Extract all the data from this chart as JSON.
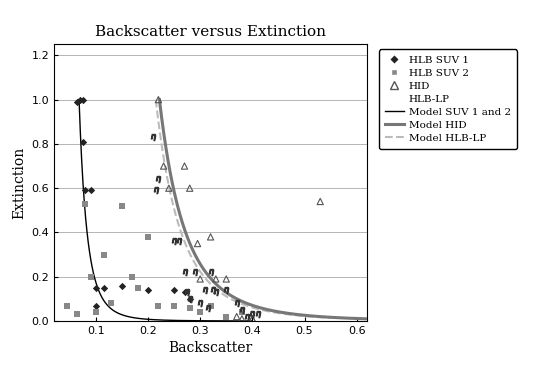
{
  "title": "Backscatter versus Extinction",
  "xlabel": "Backscatter",
  "ylabel": "Extinction",
  "xlim": [
    0.02,
    0.62
  ],
  "ylim": [
    0.0,
    1.25
  ],
  "xticks": [
    0.1,
    0.2,
    0.3,
    0.4,
    0.5,
    0.6
  ],
  "yticks": [
    0.0,
    0.2,
    0.4,
    0.6,
    0.8,
    1.0,
    1.2
  ],
  "suv1_x": [
    0.065,
    0.07,
    0.075,
    0.075,
    0.08,
    0.09,
    0.1,
    0.1,
    0.115,
    0.15,
    0.2,
    0.25,
    0.27,
    0.28
  ],
  "suv1_y": [
    0.99,
    1.0,
    1.0,
    0.81,
    0.59,
    0.59,
    0.15,
    0.07,
    0.15,
    0.16,
    0.14,
    0.14,
    0.13,
    0.1
  ],
  "suv2_x": [
    0.045,
    0.065,
    0.08,
    0.09,
    0.1,
    0.115,
    0.13,
    0.15,
    0.17,
    0.18,
    0.2,
    0.22,
    0.25,
    0.28,
    0.3,
    0.32,
    0.35,
    0.38
  ],
  "suv2_y": [
    0.07,
    0.03,
    0.53,
    0.2,
    0.04,
    0.3,
    0.08,
    0.52,
    0.2,
    0.15,
    0.38,
    0.07,
    0.07,
    0.06,
    0.04,
    0.07,
    0.02,
    0.04
  ],
  "hid_x": [
    0.22,
    0.23,
    0.24,
    0.27,
    0.28,
    0.295,
    0.3,
    0.32,
    0.33,
    0.35,
    0.37,
    0.38,
    0.4,
    0.4,
    0.53
  ],
  "hid_y": [
    1.0,
    0.7,
    0.6,
    0.7,
    0.6,
    0.35,
    0.19,
    0.38,
    0.19,
    0.19,
    0.02,
    0.01,
    0.01,
    0.01,
    0.54
  ],
  "hlblp_x": [
    0.21,
    0.215,
    0.22,
    0.25,
    0.26,
    0.27,
    0.275,
    0.28,
    0.29,
    0.3,
    0.31,
    0.315,
    0.32,
    0.325,
    0.33,
    0.35,
    0.37,
    0.38,
    0.39,
    0.4,
    0.41
  ],
  "hlblp_y": [
    0.83,
    0.59,
    0.64,
    0.36,
    0.36,
    0.22,
    0.13,
    0.1,
    0.22,
    0.08,
    0.14,
    0.06,
    0.22,
    0.14,
    0.13,
    0.14,
    0.08,
    0.05,
    0.02,
    0.03,
    0.03
  ],
  "color_suv1": "#222222",
  "color_suv2": "#888888",
  "color_hid": "#555555",
  "color_hlblp": "#333333",
  "color_model_suv": "#000000",
  "color_model_hid": "#777777",
  "color_model_hlblp": "#bbbbbb",
  "legend_labels": [
    "HLB SUV 1",
    "HLB SUV 2",
    "HID",
    "HLB-LP",
    "Model SUV 1 and 2",
    "Model HID",
    "Model HLB-LP"
  ]
}
